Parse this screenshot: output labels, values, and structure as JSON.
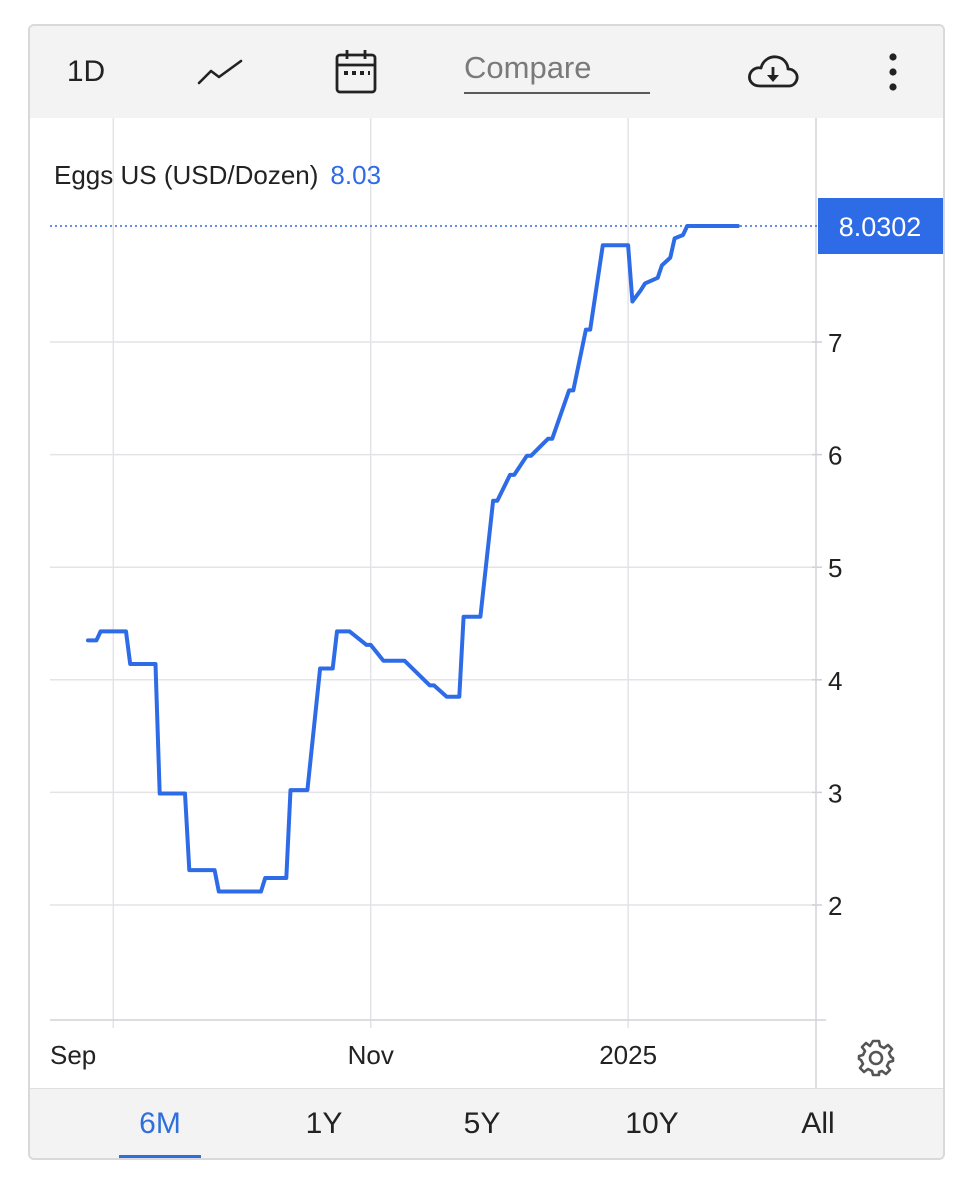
{
  "toolbar": {
    "interval_label": "1D",
    "compare_placeholder": "Compare",
    "icons": [
      "line-chart-icon",
      "calendar-icon",
      "cloud-download-icon",
      "more-vertical-icon",
      "settings-gear-icon"
    ]
  },
  "chart_data": {
    "type": "line",
    "title": "Eggs US (USD/Dozen)",
    "title_value": "8.03",
    "last_value_label": "8.0302",
    "x_tick_labels": [
      "Sep",
      "Nov",
      "2025"
    ],
    "y_ticks": [
      2,
      3,
      4,
      5,
      6,
      7
    ],
    "ylim": [
      1.0,
      8.2
    ],
    "grid": true,
    "series": [
      {
        "color": "#2e6be6",
        "x": [
          "2024-08-26",
          "2024-08-28",
          "2024-08-29",
          "2024-09-01",
          "2024-09-04",
          "2024-09-05",
          "2024-09-11",
          "2024-09-12",
          "2024-09-14",
          "2024-09-18",
          "2024-09-19",
          "2024-09-22",
          "2024-09-25",
          "2024-09-26",
          "2024-09-28",
          "2024-10-02",
          "2024-10-06",
          "2024-10-07",
          "2024-10-09",
          "2024-10-12",
          "2024-10-13",
          "2024-10-16",
          "2024-10-17",
          "2024-10-20",
          "2024-10-23",
          "2024-10-24",
          "2024-10-27",
          "2024-10-31",
          "2024-11-01",
          "2024-11-04",
          "2024-11-05",
          "2024-11-08",
          "2024-11-09",
          "2024-11-15",
          "2024-11-16",
          "2024-11-19",
          "2024-11-20",
          "2024-11-22",
          "2024-11-23",
          "2024-11-26",
          "2024-11-27",
          "2024-11-30",
          "2024-12-01",
          "2024-12-04",
          "2024-12-05",
          "2024-12-08",
          "2024-12-09",
          "2024-12-13",
          "2024-12-14",
          "2024-12-18",
          "2024-12-19",
          "2024-12-22",
          "2024-12-23",
          "2024-12-26",
          "2024-12-27",
          "2025-01-01",
          "2025-01-02",
          "2025-01-04",
          "2025-01-05",
          "2025-01-08",
          "2025-01-09",
          "2025-01-11",
          "2025-01-12",
          "2025-01-14",
          "2025-01-15",
          "2025-01-17",
          "2025-01-19",
          "2025-01-20",
          "2025-01-21",
          "2025-01-22",
          "2025-01-23",
          "2025-01-24",
          "2025-01-25",
          "2025-01-26",
          "2025-01-27"
        ],
        "y": [
          4.35,
          4.35,
          4.43,
          4.43,
          4.43,
          4.14,
          4.14,
          2.99,
          2.99,
          2.99,
          2.31,
          2.31,
          2.31,
          2.12,
          2.12,
          2.12,
          2.12,
          2.24,
          2.24,
          2.24,
          3.02,
          3.02,
          3.02,
          4.1,
          4.1,
          4.43,
          4.43,
          4.31,
          4.31,
          4.17,
          4.17,
          4.17,
          4.17,
          3.95,
          3.95,
          3.85,
          3.85,
          3.85,
          4.56,
          4.56,
          4.56,
          5.59,
          5.59,
          5.82,
          5.82,
          5.99,
          5.99,
          6.14,
          6.14,
          6.57,
          6.57,
          7.11,
          7.11,
          7.86,
          7.86,
          7.86,
          7.36,
          7.46,
          7.52,
          7.57,
          7.68,
          7.75,
          7.92,
          7.95,
          8.0302,
          8.0302,
          8.0302,
          8.0302,
          8.0302,
          8.0302,
          8.0302,
          8.0302,
          8.0302,
          8.0302,
          8.0302
        ]
      }
    ]
  },
  "ranges": [
    {
      "label": "6M",
      "active": true
    },
    {
      "label": "1Y",
      "active": false
    },
    {
      "label": "5Y",
      "active": false
    },
    {
      "label": "10Y",
      "active": false
    },
    {
      "label": "All",
      "active": false
    }
  ]
}
